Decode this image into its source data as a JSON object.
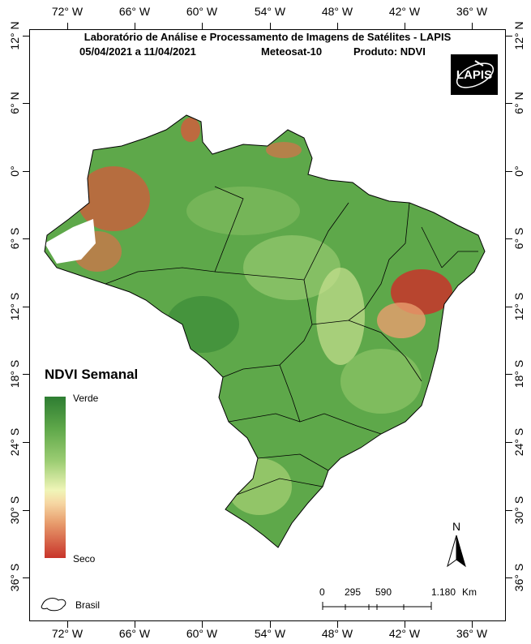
{
  "header": {
    "title": "Laboratório de Análise e Processamento de Imagens de Satélites - LAPIS",
    "date_range": "05/04/2021  a  11/04/2021",
    "satellite": "Meteosat-10",
    "product": "Produto: NDVI"
  },
  "logo": {
    "text": "LAPIS",
    "icon": "satellite-orbit-icon"
  },
  "grid": {
    "longitude_labels": [
      "72° W",
      "66° W",
      "60° W",
      "54° W",
      "48° W",
      "42° W",
      "36° W"
    ],
    "latitude_labels": [
      "12° N",
      "6° N",
      "0°",
      "6° S",
      "12° S",
      "18° S",
      "24° S",
      "30° S",
      "36° S"
    ]
  },
  "legend": {
    "title": "NDVI Semanal",
    "top_label": "Verde",
    "bottom_label": "Seco",
    "colors": [
      "#2e7d32",
      "#5fa84a",
      "#9ccd73",
      "#f0f5b8",
      "#f6d7a3",
      "#e89e6e",
      "#c8342a"
    ],
    "boundary_label": "Brasil"
  },
  "scale_bar": {
    "ticks": [
      "0",
      "295",
      "590",
      "1.180"
    ],
    "unit": "Km"
  },
  "north_arrow": {
    "label": "N"
  },
  "map": {
    "dominant_color": "#5ea84a",
    "dry_color": "#c8342a",
    "nodata_color": "#ffffff"
  }
}
